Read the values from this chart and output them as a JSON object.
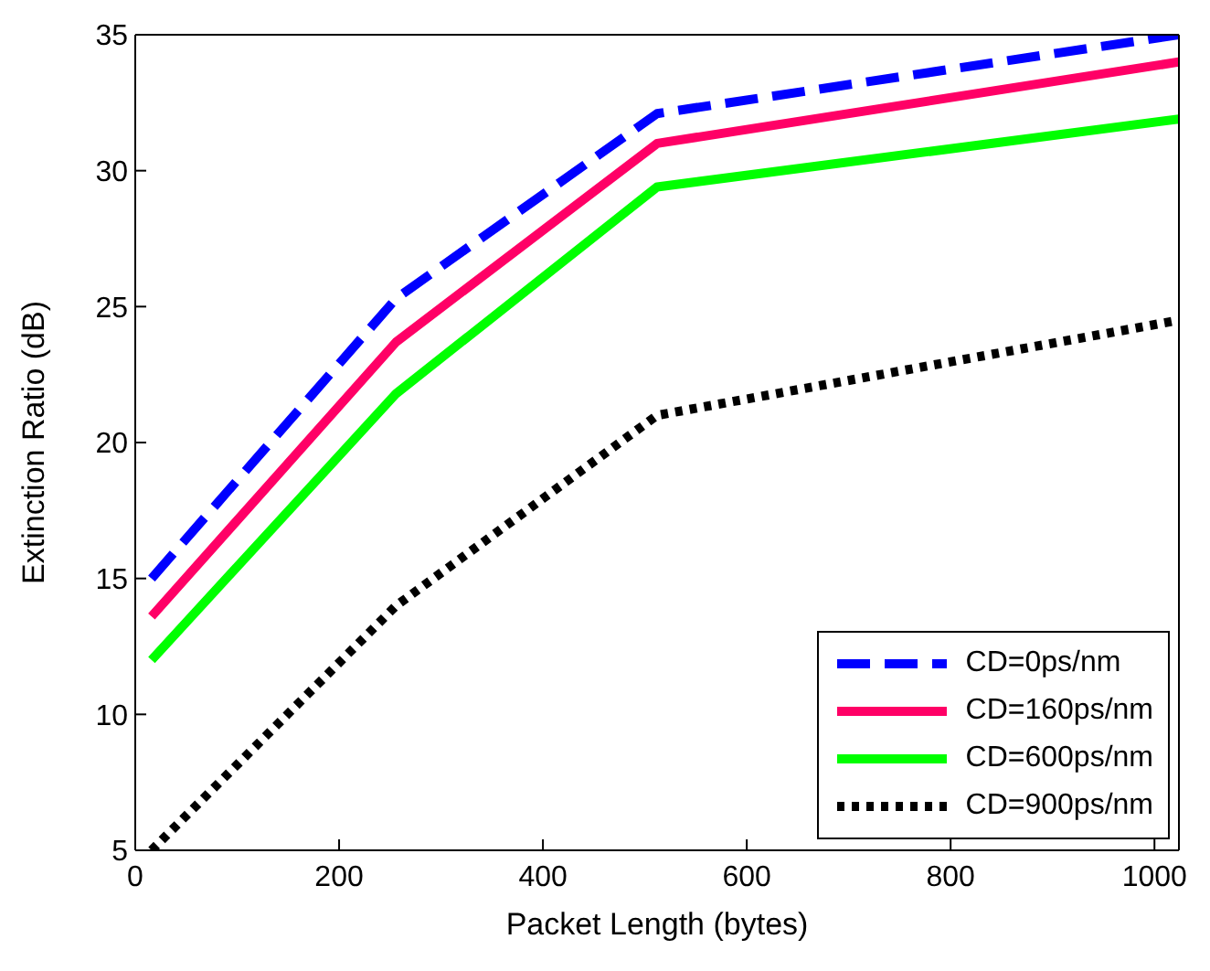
{
  "chart_data": {
    "type": "line",
    "xlabel": "Packet Length (bytes)",
    "ylabel": "Extinction Ratio (dB)",
    "x": [
      16,
      256,
      512,
      1024
    ],
    "series": [
      {
        "name": "CD=0ps/nm",
        "color": "#0000ff",
        "line_style": "dashed",
        "values": [
          15.0,
          25.3,
          32.1,
          35.0
        ]
      },
      {
        "name": "CD=160ps/nm",
        "color": "#ff0066",
        "line_style": "solid",
        "values": [
          13.6,
          23.7,
          31.0,
          34.0
        ]
      },
      {
        "name": "CD=600ps/nm",
        "color": "#00ff00",
        "line_style": "solid",
        "values": [
          12.0,
          21.8,
          29.4,
          31.9
        ]
      },
      {
        "name": "CD=900ps/nm",
        "color": "#000000",
        "line_style": "dotted",
        "values": [
          5.0,
          14.0,
          21.0,
          24.5
        ]
      }
    ],
    "xlim": [
      0,
      1024
    ],
    "xticks": [
      0,
      200,
      400,
      600,
      800,
      1000
    ],
    "ylim": [
      5,
      35
    ],
    "yticks": [
      5,
      10,
      15,
      20,
      25,
      30,
      35
    ],
    "grid": false,
    "legend": "bottom right",
    "marker": "none"
  }
}
